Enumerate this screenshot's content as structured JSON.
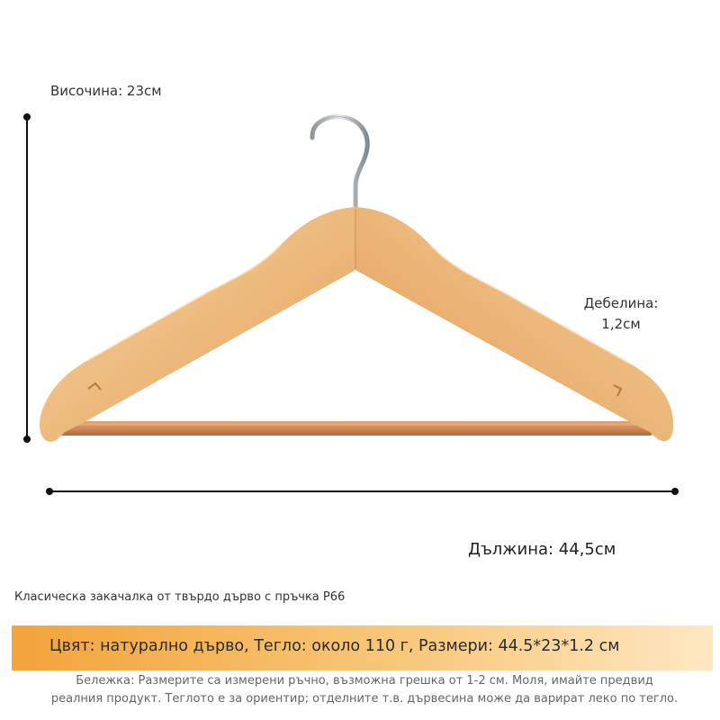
{
  "dimensions": {
    "height_label": "Височина: 23см",
    "thickness_label_line1": "Дебелина:",
    "thickness_label_line2": "1,2см",
    "length_label": "Дължина: 44,5см"
  },
  "caption": "Класическа закачалка от твърдо дърво с пръчка P66",
  "spec": "Цвят: натурално дърво, Тегло: около 110 г, Размери: 44.5*23*1.2 см",
  "note_line1": "Бележка: Размерите са измерени ръчно, възможна грешка от 1-2 см. Моля, имайте предвид",
  "note_line2": "реалния продукт. Теглото е за ориентир; отделните т.в. дървесина може да варират леко по тегло.",
  "colors": {
    "wood_light": "#f4cf95",
    "wood_mid": "#e9b273",
    "wood_dark": "#c98a4d",
    "bar": "#d08a58",
    "chrome": "#b8bcc2",
    "spec_bar_start": "#f2a33a",
    "spec_bar_end": "#fde7c2"
  }
}
